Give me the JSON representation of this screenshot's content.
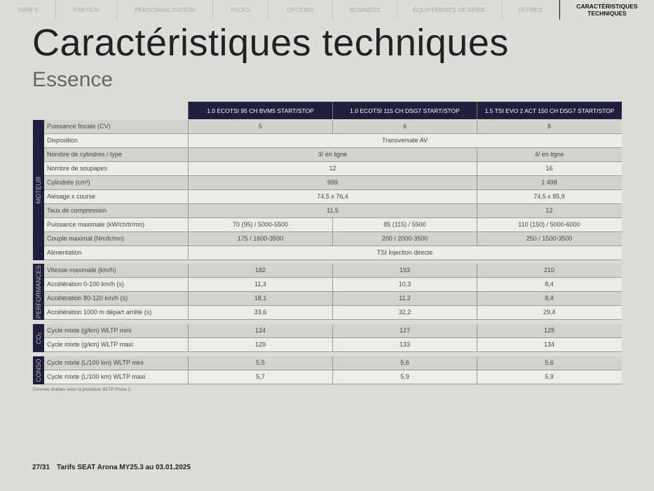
{
  "nav": {
    "tabs": [
      "Tarifs",
      "Finition",
      "Personnalisation",
      "Packs",
      "Options",
      "Business",
      "Équipements de série",
      "Offres"
    ],
    "active": "CARACTÉRISTIQUES TECHNIQUES"
  },
  "title": "Caractéristiques techniques",
  "subtitle": "Essence",
  "engines": [
    "1.0 ECOTSI 95 CH BVM5 START/STOP",
    "1.0 ECOTSI 115 CH DSG7 START/STOP",
    "1.5 TSI EVO 2 ACT 150 CH DSG7 START/STOP"
  ],
  "sections": [
    {
      "name": "MOTEUR",
      "rows": [
        {
          "label": "Puissance fiscale (CV)",
          "values": [
            {
              "text": "5",
              "span": 1
            },
            {
              "text": "6",
              "span": 1
            },
            {
              "text": "8",
              "span": 1
            }
          ]
        },
        {
          "label": "Disposition",
          "values": [
            {
              "text": "Transversale AV",
              "span": 3
            }
          ]
        },
        {
          "label": "Nombre de cylindres / type",
          "values": [
            {
              "text": "3/ en ligne",
              "span": 2
            },
            {
              "text": "4/ en ligne",
              "span": 1
            }
          ]
        },
        {
          "label": "Nombre de soupapes",
          "values": [
            {
              "text": "12",
              "span": 2
            },
            {
              "text": "16",
              "span": 1
            }
          ]
        },
        {
          "label": "Cylindrée (cm³)",
          "values": [
            {
              "text": "999",
              "span": 2
            },
            {
              "text": "1 498",
              "span": 1
            }
          ]
        },
        {
          "label": "Alésage x course",
          "values": [
            {
              "text": "74,5 x 76,4",
              "span": 2
            },
            {
              "text": "74,5 x 85,9",
              "span": 1
            }
          ]
        },
        {
          "label": "Taux de compression",
          "values": [
            {
              "text": "11,5",
              "span": 2
            },
            {
              "text": "12",
              "span": 1
            }
          ]
        },
        {
          "label": "Puissance maximale (kW/ch/tr/mn)",
          "values": [
            {
              "text": "70 (95) / 5000-5500",
              "span": 1
            },
            {
              "text": "85 (115) / 5500",
              "span": 1
            },
            {
              "text": "110 (150) / 5000-6000",
              "span": 1
            }
          ]
        },
        {
          "label": "Couple maximal (Nm/tr/mn)",
          "values": [
            {
              "text": "175 / 1600-3500",
              "span": 1
            },
            {
              "text": "200 / 2000-3500",
              "span": 1
            },
            {
              "text": "250 / 1500-3500",
              "span": 1
            }
          ]
        },
        {
          "label": "Alimentation",
          "values": [
            {
              "text": "TSI Injection directe",
              "span": 3
            }
          ]
        }
      ]
    },
    {
      "name": "PERFORMANCES",
      "rows": [
        {
          "label": "Vitesse maximale (km/h)",
          "values": [
            {
              "text": "182",
              "span": 1
            },
            {
              "text": "193",
              "span": 1
            },
            {
              "text": "210",
              "span": 1
            }
          ]
        },
        {
          "label": "Accélération 0-100 km/h (s)",
          "values": [
            {
              "text": "11,3",
              "span": 1
            },
            {
              "text": "10,3",
              "span": 1
            },
            {
              "text": "8,4",
              "span": 1
            }
          ]
        },
        {
          "label": "Accélération 80-120 km/h (s)",
          "values": [
            {
              "text": "18,1",
              "span": 1
            },
            {
              "text": "11,2",
              "span": 1
            },
            {
              "text": "8,4",
              "span": 1
            }
          ]
        },
        {
          "label": "Accélération 1000 m départ arrêté (s)",
          "values": [
            {
              "text": "33,6",
              "span": 1
            },
            {
              "text": "32,2",
              "span": 1
            },
            {
              "text": "29,4",
              "span": 1
            }
          ]
        }
      ]
    },
    {
      "name": "CO₂",
      "rows": [
        {
          "label": "Cycle mixte (g/km) WLTP mini",
          "values": [
            {
              "text": "124",
              "span": 1
            },
            {
              "text": "127",
              "span": 1
            },
            {
              "text": "128",
              "span": 1
            }
          ]
        },
        {
          "label": "Cycle mixte (g/km) WLTP maxi",
          "values": [
            {
              "text": "129",
              "span": 1
            },
            {
              "text": "133",
              "span": 1
            },
            {
              "text": "134",
              "span": 1
            }
          ]
        }
      ]
    },
    {
      "name": "CONSO",
      "rows": [
        {
          "label": "Cycle mixte (L/100 km) WLTP mini",
          "values": [
            {
              "text": "5,5",
              "span": 1
            },
            {
              "text": "5,6",
              "span": 1
            },
            {
              "text": "5,6",
              "span": 1
            }
          ]
        },
        {
          "label": "Cycle mixte (L/100 km) WLTP maxi",
          "values": [
            {
              "text": "5,7",
              "span": 1
            },
            {
              "text": "5,9",
              "span": 1
            },
            {
              "text": "5,9",
              "span": 1
            }
          ]
        }
      ]
    }
  ],
  "note": "Données établies selon la procédure WLTP Phase 2.",
  "footer": {
    "page": "27/31",
    "doc": "Tarifs SEAT Arona MY25.3 au 03.01.2025"
  },
  "colors": {
    "navy": "#1f1f3d",
    "background": "#dddcd8"
  }
}
